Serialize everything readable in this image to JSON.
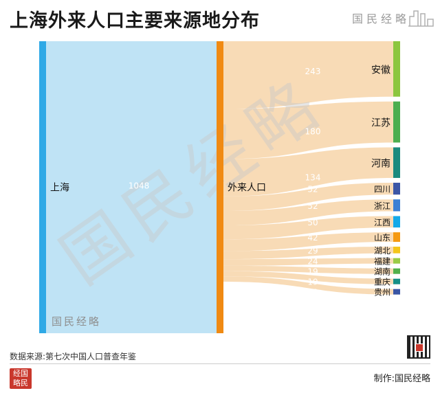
{
  "title": "上海外来人口主要来源地分布",
  "brand": "国民经略",
  "source_note": "数据来源:第七次中国人口普查年鉴",
  "credit": "制作:国民经略",
  "logo_text": "经国略民",
  "colors": {
    "source_node": "#2fa9e6",
    "source_link": "#bfe3f5",
    "mid_node": "#f08a13",
    "target_link": "#f7d7ae",
    "watermark": "#c9c9c9"
  },
  "chart_data": {
    "type": "sankey",
    "title": "上海外来人口主要来源地分布",
    "unit_note": "",
    "source": {
      "name": "上海",
      "value": 1048
    },
    "middle": {
      "name": "外来人口",
      "value": 1048
    },
    "targets": [
      {
        "name": "安徽",
        "value": 243,
        "color": "#8cc63f"
      },
      {
        "name": "江苏",
        "value": 180,
        "color": "#4cae4f"
      },
      {
        "name": "河南",
        "value": 134,
        "color": "#1a8a7e"
      },
      {
        "name": "四川",
        "value": 52,
        "color": "#3c56a6"
      },
      {
        "name": "浙江",
        "value": 52,
        "color": "#3b7fd4"
      },
      {
        "name": "江西",
        "value": 50,
        "color": "#14a9e8"
      },
      {
        "name": "山东",
        "value": 42,
        "color": "#f59a12"
      },
      {
        "name": "湖北",
        "value": 29,
        "color": "#f4c51a"
      },
      {
        "name": "福建",
        "value": 24,
        "color": "#9acb45"
      },
      {
        "name": "湖南",
        "value": 19,
        "color": "#52b04a"
      },
      {
        "name": "重庆",
        "value": 19,
        "color": "#168f86"
      },
      {
        "name": "贵州",
        "value": 19,
        "color": "#3a55a4"
      }
    ]
  }
}
